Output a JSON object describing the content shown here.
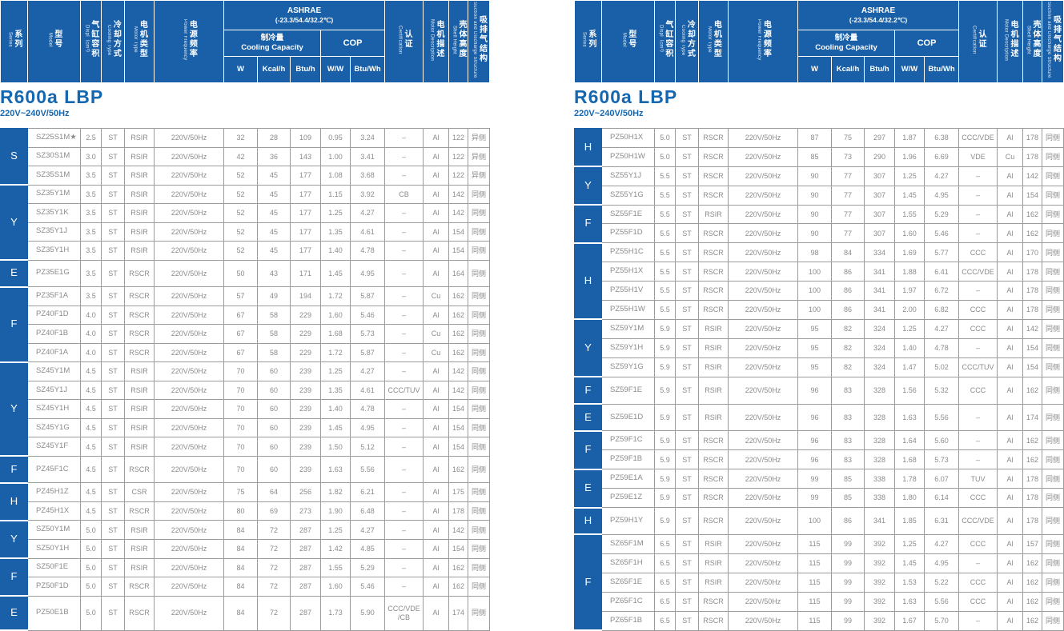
{
  "header": {
    "series_zh": "系列",
    "series_en": "Series",
    "model_zh": "型号",
    "model_en": "Model",
    "displ_zh": "气缸容积",
    "displ_en": "Displ（cm³）",
    "cooling_zh": "冷却方式",
    "cooling_en": "Cooling Type",
    "motor_zh": "电机类型",
    "motor_en": "Motor Type",
    "freq_zh": "电源频率",
    "freq_en": "Power Frequency",
    "ashrae_line1": "ASHRAE",
    "ashrae_line2": "(-23.3/54.4/32.2℃)",
    "capacity_zh": "制冷量",
    "capacity_en": "Cooling Capacity",
    "cop": "COP",
    "unit_w": "W",
    "unit_kcal": "Kcal/h",
    "unit_btu": "Btu/h",
    "unit_ww": "W/W",
    "unit_btuwh": "Btu/Wh",
    "cert_zh": "认证",
    "cert_en": "Certification",
    "motordesc_zh": "电机描述",
    "motordesc_en": "Motor Description",
    "shell_zh": "壳体高度",
    "shell_en": "Shell Height",
    "suction_zh": "吸排气结构",
    "suction_en": "Suction and Discharge Structure"
  },
  "colors": {
    "header_blue": "#1a60a8",
    "title_blue": "#1567b0",
    "body_text": "#8b8b8b",
    "border_gray": "#9c9c9c"
  },
  "column_names": [
    "model",
    "displacement",
    "cooling-type",
    "motor-type",
    "power-frequency",
    "capacity-w",
    "capacity-kcal",
    "capacity-btu",
    "cop-ww",
    "cop-btuwh",
    "certification",
    "motor-description",
    "shell-height",
    "suction-structure"
  ],
  "tables": [
    {
      "title": "R600a LBP",
      "subtitle": "220V~240V/50Hz",
      "groups": [
        {
          "label": "S",
          "span": 3
        },
        {
          "label": "Y",
          "span": 4
        },
        {
          "label": "E",
          "span": 1
        },
        {
          "label": "F",
          "span": 4
        },
        {
          "label": "Y",
          "span": 5
        },
        {
          "label": "F",
          "span": 1
        },
        {
          "label": "H",
          "span": 2
        },
        {
          "label": "Y",
          "span": 2
        },
        {
          "label": "F",
          "span": 2
        },
        {
          "label": "E",
          "span": 1
        }
      ],
      "rows": [
        [
          "SZ25S1M★",
          "2.5",
          "ST",
          "RSIR",
          "220V/50Hz",
          "32",
          "28",
          "109",
          "0.95",
          "3.24",
          "–",
          "Al",
          "122",
          "异侧"
        ],
        [
          "SZ30S1M",
          "3.0",
          "ST",
          "RSIR",
          "220V/50Hz",
          "42",
          "36",
          "143",
          "1.00",
          "3.41",
          "–",
          "Al",
          "122",
          "异侧"
        ],
        [
          "SZ35S1M",
          "3.5",
          "ST",
          "RSIR",
          "220V/50Hz",
          "52",
          "45",
          "177",
          "1.08",
          "3.68",
          "–",
          "Al",
          "122",
          "异侧"
        ],
        [
          "SZ35Y1M",
          "3.5",
          "ST",
          "RSIR",
          "220V/50Hz",
          "52",
          "45",
          "177",
          "1.15",
          "3.92",
          "CB",
          "Al",
          "142",
          "同侧"
        ],
        [
          "SZ35Y1K",
          "3.5",
          "ST",
          "RSIR",
          "220V/50Hz",
          "52",
          "45",
          "177",
          "1.25",
          "4.27",
          "–",
          "Al",
          "142",
          "同侧"
        ],
        [
          "SZ35Y1J",
          "3.5",
          "ST",
          "RSIR",
          "220V/50Hz",
          "52",
          "45",
          "177",
          "1.35",
          "4.61",
          "–",
          "Al",
          "154",
          "同侧"
        ],
        [
          "SZ35Y1H",
          "3.5",
          "ST",
          "RSIR",
          "220V/50Hz",
          "52",
          "45",
          "177",
          "1.40",
          "4.78",
          "–",
          "Al",
          "154",
          "同侧"
        ],
        [
          "PZ35E1G",
          "3.5",
          "ST",
          "RSCR",
          "220V/50Hz",
          "50",
          "43",
          "171",
          "1.45",
          "4.95",
          "–",
          "Al",
          "164",
          "同侧"
        ],
        [
          "PZ35F1A",
          "3.5",
          "ST",
          "RSCR",
          "220V/50Hz",
          "57",
          "49",
          "194",
          "1.72",
          "5.87",
          "–",
          "Cu",
          "162",
          "同侧"
        ],
        [
          "PZ40F1D",
          "4.0",
          "ST",
          "RSCR",
          "220V/50Hz",
          "67",
          "58",
          "229",
          "1.60",
          "5.46",
          "–",
          "Al",
          "162",
          "同侧"
        ],
        [
          "PZ40F1B",
          "4.0",
          "ST",
          "RSCR",
          "220V/50Hz",
          "67",
          "58",
          "229",
          "1.68",
          "5.73",
          "–",
          "Cu",
          "162",
          "同侧"
        ],
        [
          "PZ40F1A",
          "4.0",
          "ST",
          "RSCR",
          "220V/50Hz",
          "67",
          "58",
          "229",
          "1.72",
          "5.87",
          "–",
          "Cu",
          "162",
          "同侧"
        ],
        [
          "SZ45Y1M",
          "4.5",
          "ST",
          "RSIR",
          "220V/50Hz",
          "70",
          "60",
          "239",
          "1.25",
          "4.27",
          "–",
          "Al",
          "142",
          "同侧"
        ],
        [
          "SZ45Y1J",
          "4.5",
          "ST",
          "RSIR",
          "220V/50Hz",
          "70",
          "60",
          "239",
          "1.35",
          "4.61",
          "CCC/TUV",
          "Al",
          "142",
          "同侧"
        ],
        [
          "SZ45Y1H",
          "4.5",
          "ST",
          "RSIR",
          "220V/50Hz",
          "70",
          "60",
          "239",
          "1.40",
          "4.78",
          "–",
          "Al",
          "154",
          "同侧"
        ],
        [
          "SZ45Y1G",
          "4.5",
          "ST",
          "RSIR",
          "220V/50Hz",
          "70",
          "60",
          "239",
          "1.45",
          "4.95",
          "–",
          "Al",
          "154",
          "同侧"
        ],
        [
          "SZ45Y1F",
          "4.5",
          "ST",
          "RSIR",
          "220V/50Hz",
          "70",
          "60",
          "239",
          "1.50",
          "5.12",
          "–",
          "Al",
          "154",
          "同侧"
        ],
        [
          "PZ45F1C",
          "4.5",
          "ST",
          "RSCR",
          "220V/50Hz",
          "70",
          "60",
          "239",
          "1.63",
          "5.56",
          "–",
          "Al",
          "162",
          "同侧"
        ],
        [
          "PZ45H1Z",
          "4.5",
          "ST",
          "CSR",
          "220V/50Hz",
          "75",
          "64",
          "256",
          "1.82",
          "6.21",
          "–",
          "Al",
          "175",
          "同侧"
        ],
        [
          "PZ45H1X",
          "4.5",
          "ST",
          "RSCR",
          "220V/50Hz",
          "80",
          "69",
          "273",
          "1.90",
          "6.48",
          "–",
          "Al",
          "178",
          "同侧"
        ],
        [
          "SZ50Y1M",
          "5.0",
          "ST",
          "RSIR",
          "220V/50Hz",
          "84",
          "72",
          "287",
          "1.25",
          "4.27",
          "–",
          "Al",
          "142",
          "同侧"
        ],
        [
          "SZ50Y1H",
          "5.0",
          "ST",
          "RSIR",
          "220V/50Hz",
          "84",
          "72",
          "287",
          "1.42",
          "4.85",
          "–",
          "Al",
          "154",
          "同侧"
        ],
        [
          "SZ50F1E",
          "5.0",
          "ST",
          "RSIR",
          "220V/50Hz",
          "84",
          "72",
          "287",
          "1.55",
          "5.29",
          "–",
          "Al",
          "162",
          "同侧"
        ],
        [
          "PZ50F1D",
          "5.0",
          "ST",
          "RSCR",
          "220V/50Hz",
          "84",
          "72",
          "287",
          "1.60",
          "5.46",
          "–",
          "Al",
          "162",
          "同侧"
        ],
        [
          "PZ50E1B",
          "5.0",
          "ST",
          "RSCR",
          "220V/50Hz",
          "84",
          "72",
          "287",
          "1.73",
          "5.90",
          "CCC/VDE /CB",
          "Al",
          "174",
          "同侧"
        ]
      ]
    },
    {
      "title": "R600a LBP",
      "subtitle": "220V~240V/50Hz",
      "groups": [
        {
          "label": "H",
          "span": 2
        },
        {
          "label": "Y",
          "span": 2
        },
        {
          "label": "F",
          "span": 2
        },
        {
          "label": "H",
          "span": 4
        },
        {
          "label": "Y",
          "span": 3
        },
        {
          "label": "F",
          "span": 1
        },
        {
          "label": "E",
          "span": 1
        },
        {
          "label": "F",
          "span": 2
        },
        {
          "label": "E",
          "span": 2
        },
        {
          "label": "H",
          "span": 1
        },
        {
          "label": "F",
          "span": 5
        }
      ],
      "rows": [
        [
          "PZ50H1X",
          "5.0",
          "ST",
          "RSCR",
          "220V/50Hz",
          "87",
          "75",
          "297",
          "1.87",
          "6.38",
          "CCC/VDE",
          "Al",
          "178",
          "同侧"
        ],
        [
          "PZ50H1W",
          "5.0",
          "ST",
          "RSCR",
          "220V/50Hz",
          "85",
          "73",
          "290",
          "1.96",
          "6.69",
          "VDE",
          "Cu",
          "178",
          "同侧"
        ],
        [
          "SZ55Y1J",
          "5.5",
          "ST",
          "RSCR",
          "220V/50Hz",
          "90",
          "77",
          "307",
          "1.25",
          "4.27",
          "–",
          "Al",
          "142",
          "同侧"
        ],
        [
          "SZ55Y1G",
          "5.5",
          "ST",
          "RSCR",
          "220V/50Hz",
          "90",
          "77",
          "307",
          "1.45",
          "4.95",
          "–",
          "Al",
          "154",
          "同侧"
        ],
        [
          "SZ55F1E",
          "5.5",
          "ST",
          "RSIR",
          "220V/50Hz",
          "90",
          "77",
          "307",
          "1.55",
          "5.29",
          "–",
          "Al",
          "162",
          "同侧"
        ],
        [
          "PZ55F1D",
          "5.5",
          "ST",
          "RSCR",
          "220V/50Hz",
          "90",
          "77",
          "307",
          "1.60",
          "5.46",
          "–",
          "Al",
          "162",
          "同侧"
        ],
        [
          "PZ55H1C",
          "5.5",
          "ST",
          "RSCR",
          "220V/50Hz",
          "98",
          "84",
          "334",
          "1.69",
          "5.77",
          "CCC",
          "Al",
          "170",
          "同侧"
        ],
        [
          "PZ55H1X",
          "5.5",
          "ST",
          "RSCR",
          "220V/50Hz",
          "100",
          "86",
          "341",
          "1.88",
          "6.41",
          "CCC/VDE",
          "Al",
          "178",
          "同侧"
        ],
        [
          "PZ55H1V",
          "5.5",
          "ST",
          "RSCR",
          "220V/50Hz",
          "100",
          "86",
          "341",
          "1.97",
          "6.72",
          "–",
          "Al",
          "178",
          "同侧"
        ],
        [
          "PZ55H1W",
          "5.5",
          "ST",
          "RSCR",
          "220V/50Hz",
          "100",
          "86",
          "341",
          "2.00",
          "6.82",
          "CCC",
          "Al",
          "178",
          "同侧"
        ],
        [
          "SZ59Y1M",
          "5.9",
          "ST",
          "RSIR",
          "220V/50Hz",
          "95",
          "82",
          "324",
          "1.25",
          "4.27",
          "CCC",
          "Al",
          "142",
          "同侧"
        ],
        [
          "SZ59Y1H",
          "5.9",
          "ST",
          "RSIR",
          "220V/50Hz",
          "95",
          "82",
          "324",
          "1.40",
          "4.78",
          "–",
          "Al",
          "154",
          "同侧"
        ],
        [
          "SZ59Y1G",
          "5.9",
          "ST",
          "RSIR",
          "220V/50Hz",
          "95",
          "82",
          "324",
          "1.47",
          "5.02",
          "CCC/TUV",
          "Al",
          "154",
          "同侧"
        ],
        [
          "SZ59F1E",
          "5.9",
          "ST",
          "RSIR",
          "220V/50Hz",
          "96",
          "83",
          "328",
          "1.56",
          "5.32",
          "CCC",
          "Al",
          "162",
          "同侧"
        ],
        [
          "SZ59E1D",
          "5.9",
          "ST",
          "RSIR",
          "220V/50Hz",
          "96",
          "83",
          "328",
          "1.63",
          "5.56",
          "–",
          "Al",
          "174",
          "同侧"
        ],
        [
          "PZ59F1C",
          "5.9",
          "ST",
          "RSCR",
          "220V/50Hz",
          "96",
          "83",
          "328",
          "1.64",
          "5.60",
          "–",
          "Al",
          "162",
          "同侧"
        ],
        [
          "PZ59F1B",
          "5.9",
          "ST",
          "RSCR",
          "220V/50Hz",
          "96",
          "83",
          "328",
          "1.68",
          "5.73",
          "–",
          "Al",
          "162",
          "同侧"
        ],
        [
          "PZ59E1A",
          "5.9",
          "ST",
          "RSCR",
          "220V/50Hz",
          "99",
          "85",
          "338",
          "1.78",
          "6.07",
          "TUV",
          "Al",
          "178",
          "同侧"
        ],
        [
          "PZ59E1Z",
          "5.9",
          "ST",
          "RSCR",
          "220V/50Hz",
          "99",
          "85",
          "338",
          "1.80",
          "6.14",
          "CCC",
          "Al",
          "178",
          "同侧"
        ],
        [
          "PZ59H1Y",
          "5.9",
          "ST",
          "RSCR",
          "220V/50Hz",
          "100",
          "86",
          "341",
          "1.85",
          "6.31",
          "CCC/VDE",
          "Al",
          "178",
          "同侧"
        ],
        [
          "SZ65F1M",
          "6.5",
          "ST",
          "RSIR",
          "220V/50Hz",
          "115",
          "99",
          "392",
          "1.25",
          "4.27",
          "CCC",
          "Al",
          "157",
          "同侧"
        ],
        [
          "SZ65F1H",
          "6.5",
          "ST",
          "RSIR",
          "220V/50Hz",
          "115",
          "99",
          "392",
          "1.45",
          "4.95",
          "–",
          "Al",
          "162",
          "同侧"
        ],
        [
          "SZ65F1E",
          "6.5",
          "ST",
          "RSIR",
          "220V/50Hz",
          "115",
          "99",
          "392",
          "1.53",
          "5.22",
          "CCC",
          "Al",
          "162",
          "同侧"
        ],
        [
          "PZ65F1C",
          "6.5",
          "ST",
          "RSCR",
          "220V/50Hz",
          "115",
          "99",
          "392",
          "1.63",
          "5.56",
          "CCC",
          "Al",
          "162",
          "同侧"
        ],
        [
          "PZ65F1B",
          "6.5",
          "ST",
          "RSCR",
          "220V/50Hz",
          "115",
          "99",
          "392",
          "1.67",
          "5.70",
          "–",
          "Al",
          "162",
          "同侧"
        ]
      ]
    }
  ]
}
